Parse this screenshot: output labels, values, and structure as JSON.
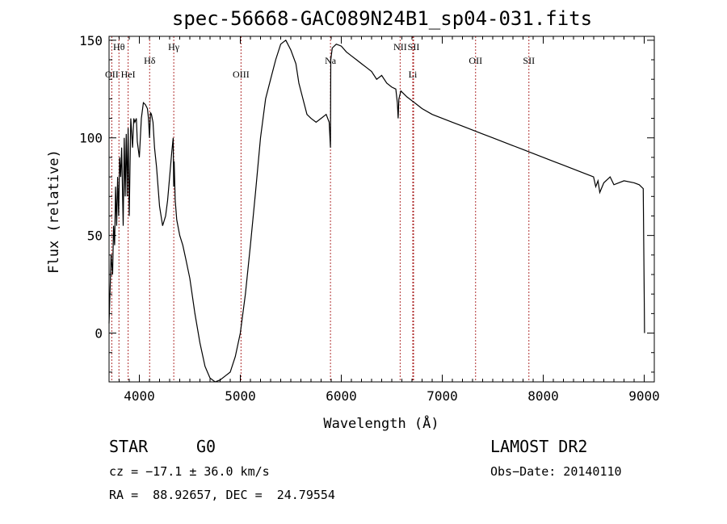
{
  "chart_data": {
    "type": "line",
    "title": "spec-56668-GAC089N24B1_sp04-031.fits",
    "xlabel": "Wavelength (Å)",
    "ylabel": "Flux (relative)",
    "xlim": [
      3700,
      9100
    ],
    "ylim": [
      -25,
      152
    ],
    "x_ticks": [
      4000,
      5000,
      6000,
      7000,
      8000,
      9000
    ],
    "y_ticks": [
      0,
      50,
      100,
      150
    ],
    "grid": false,
    "line_color": "#000000",
    "marker_color": "#b03030",
    "series": [
      {
        "x": [
          3700,
          3712,
          3720,
          3735,
          3745,
          3755,
          3765,
          3775,
          3785,
          3795,
          3805,
          3815,
          3825,
          3840,
          3850,
          3860,
          3870,
          3880,
          3889,
          3900,
          3915,
          3933,
          3945,
          3955,
          3970,
          3980,
          4000,
          4020,
          4040,
          4060,
          4080,
          4090,
          4101,
          4110,
          4120,
          4135,
          4150,
          4170,
          4200,
          4230,
          4260,
          4280,
          4300,
          4320,
          4335,
          4340,
          4345,
          4355,
          4370,
          4400,
          4430,
          4460,
          4500,
          4550,
          4600,
          4650,
          4700,
          4750,
          4800,
          4850,
          4900,
          4950,
          5000,
          5050,
          5100,
          5150,
          5200,
          5250,
          5300,
          5350,
          5400,
          5450,
          5500,
          5550,
          5580,
          5620,
          5660,
          5700,
          5750,
          5800,
          5850,
          5880,
          5893,
          5896,
          5910,
          5950,
          6000,
          6050,
          6100,
          6150,
          6200,
          6250,
          6300,
          6350,
          6400,
          6450,
          6500,
          6540,
          6555,
          6563,
          6570,
          6590,
          6650,
          6700,
          6750,
          6800,
          6900,
          7000,
          7100,
          7200,
          7300,
          7400,
          7500,
          7600,
          7700,
          7800,
          7900,
          8000,
          8100,
          8200,
          8300,
          8400,
          8498,
          8520,
          8542,
          8560,
          8600,
          8662,
          8700,
          8800,
          8900,
          8950,
          8990,
          9000,
          9003
        ],
        "y": [
          5,
          25,
          40,
          30,
          55,
          45,
          75,
          55,
          80,
          60,
          90,
          80,
          95,
          55,
          100,
          70,
          102,
          70,
          105,
          60,
          110,
          95,
          110,
          108,
          110,
          98,
          90,
          110,
          118,
          117,
          115,
          110,
          100,
          113,
          112,
          108,
          95,
          85,
          65,
          55,
          60,
          68,
          80,
          92,
          100,
          75,
          88,
          68,
          58,
          50,
          45,
          38,
          28,
          10,
          -5,
          -17,
          -23,
          -25,
          -24,
          -22,
          -20,
          -12,
          0,
          20,
          45,
          72,
          100,
          120,
          130,
          140,
          148,
          150,
          145,
          138,
          128,
          120,
          112,
          110,
          108,
          110,
          112,
          108,
          95,
          140,
          146,
          148,
          147,
          144,
          142,
          140,
          138,
          136,
          134,
          130,
          132,
          128,
          126,
          125,
          118,
          110,
          120,
          124,
          121,
          119,
          117,
          115,
          112,
          110,
          108,
          106,
          104,
          102,
          100,
          98,
          96,
          94,
          92,
          90,
          88,
          86,
          84,
          82,
          80,
          75,
          78,
          72,
          77,
          80,
          76,
          78,
          77,
          76,
          74,
          20,
          0
        ]
      }
    ],
    "lines": [
      {
        "label": "Hθ",
        "x": 3798,
        "row": 0
      },
      {
        "label": "OII",
        "x": 3727,
        "row": 2
      },
      {
        "label": "HeI",
        "x": 3889,
        "row": 2
      },
      {
        "label": "Hδ",
        "x": 4102,
        "row": 1
      },
      {
        "label": "Hγ",
        "x": 4341,
        "row": 0
      },
      {
        "label": "OIII",
        "x": 5007,
        "row": 2
      },
      {
        "label": "Na",
        "x": 5893,
        "row": 1
      },
      {
        "label": "NII",
        "x": 6583,
        "row": 0
      },
      {
        "label": "SII",
        "x": 6716,
        "row": 0
      },
      {
        "label": "Li",
        "x": 6708,
        "row": 2
      },
      {
        "label": "OII",
        "x": 7330,
        "row": 1
      },
      {
        "label": "SII",
        "x": 7858,
        "row": 1
      }
    ]
  },
  "info": {
    "star_label": "STAR",
    "spectral_class": "G0",
    "survey": "LAMOST DR2",
    "cz": "cz = −17.1 ± 36.0 km/s",
    "obs_date": "Obs−Date: 20140110",
    "coords": "RA =  88.92657, DEC =  24.79554"
  }
}
